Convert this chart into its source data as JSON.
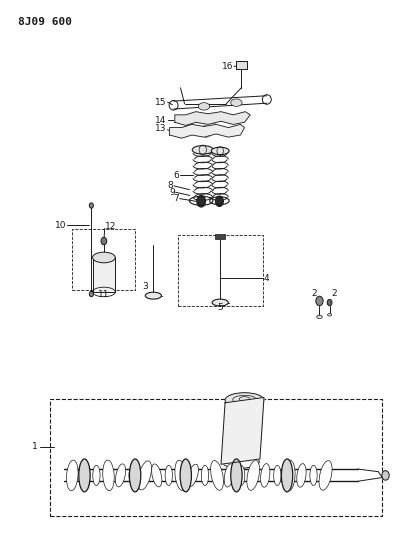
{
  "title": "8J09 600",
  "bg_color": "#ffffff",
  "line_color": "#1a1a1a",
  "fig_width": 4.08,
  "fig_height": 5.33,
  "dpi": 100
}
